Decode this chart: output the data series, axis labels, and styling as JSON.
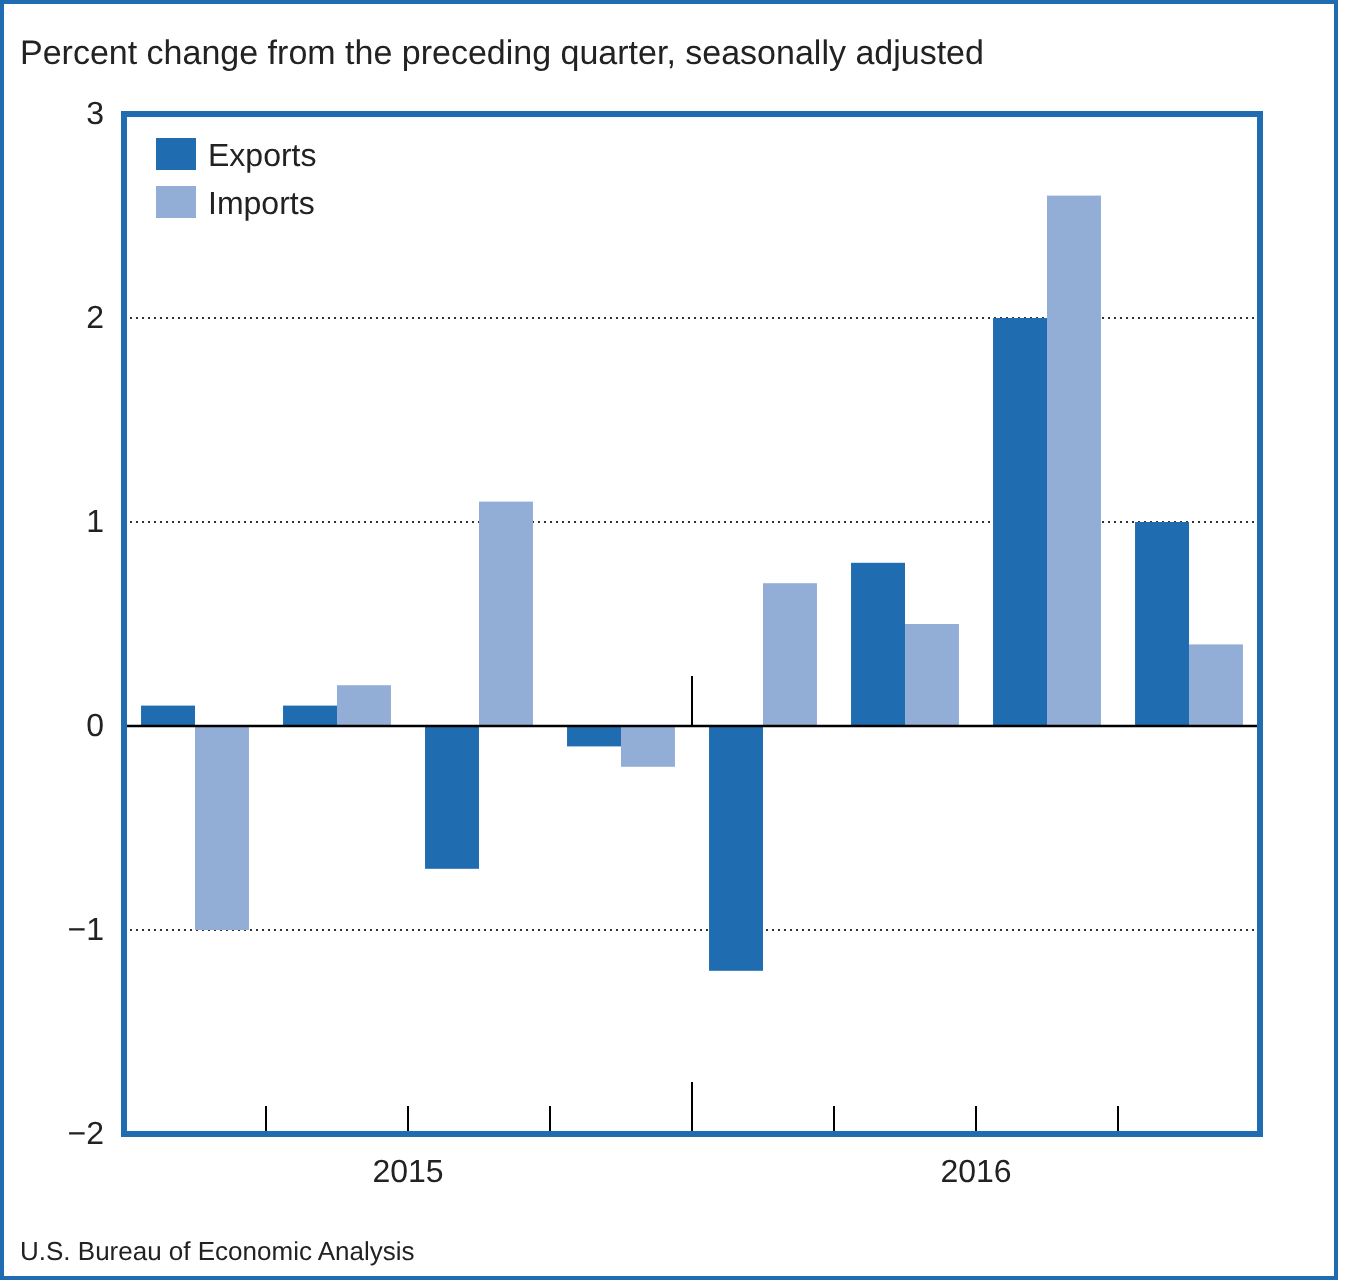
{
  "chart_data": {
    "type": "bar",
    "title": "Percent change from the preceding quarter, seasonally adjusted",
    "categories": [
      null,
      null,
      null,
      null,
      null,
      null,
      null,
      null
    ],
    "series": [
      {
        "name": "Exports",
        "color": "#1f6db0",
        "values": [
          0.1,
          0.1,
          -0.7,
          -0.1,
          -1.2,
          0.8,
          2.0,
          1.0
        ]
      },
      {
        "name": "Imports",
        "color": "#93aed6",
        "values": [
          -1.0,
          0.2,
          1.1,
          -0.2,
          0.7,
          0.5,
          2.6,
          0.4
        ]
      }
    ],
    "ylim": [
      -2,
      3
    ],
    "yticks": [
      {
        "value": -2,
        "label": "−2"
      },
      {
        "value": -1,
        "label": "−1"
      },
      0,
      1,
      2,
      3
    ],
    "grid": "y",
    "legend": "top left",
    "annotations": [
      "2015",
      "2016",
      "U.S. Bureau of Economic Analysis"
    ]
  }
}
